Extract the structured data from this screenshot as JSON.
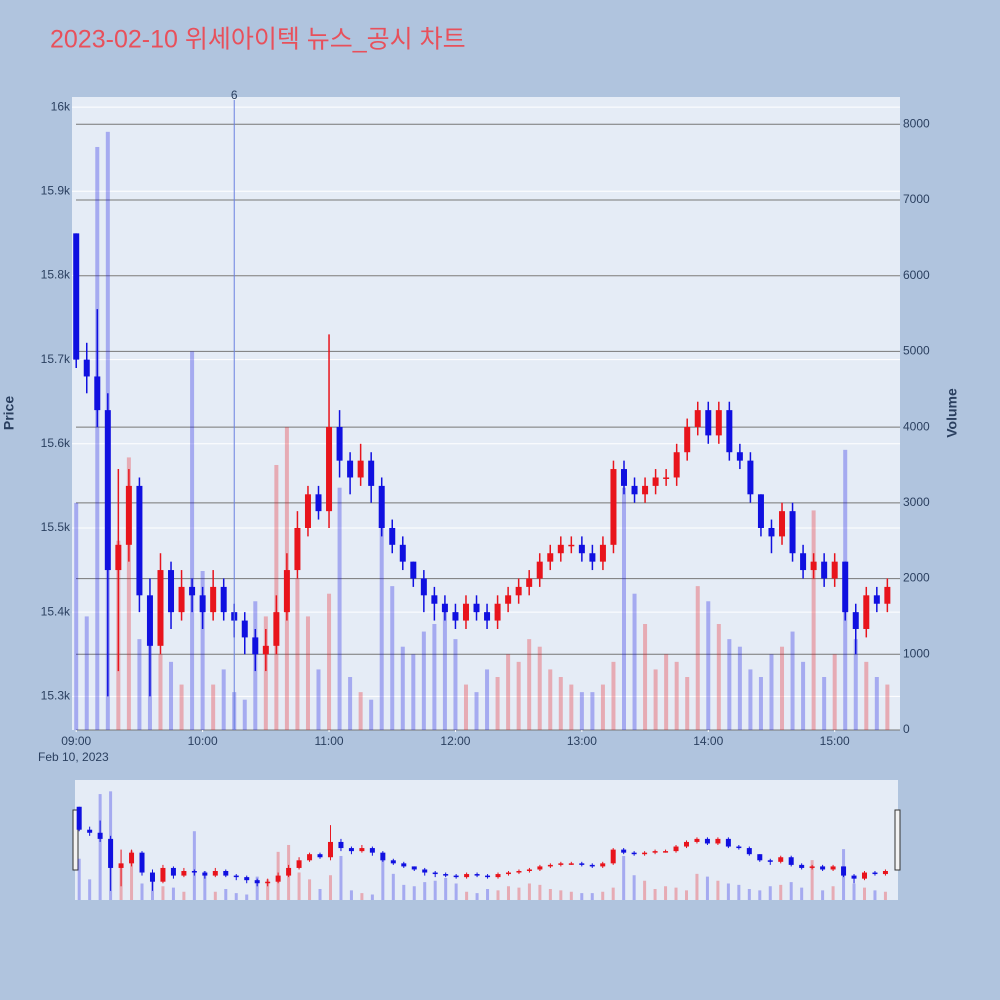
{
  "chart_data": {
    "type": "candlestick",
    "title": "2023-02-10 위세아이텍 뉴스_공시 차트",
    "y_label": "Price",
    "y2_label": "Volume",
    "x_date_label": "Feb 10, 2023",
    "increasing_color": "#e8141c",
    "decreasing_color": "#1010e0",
    "x": [
      "09:00",
      "09:05",
      "09:10",
      "09:15",
      "09:20",
      "09:25",
      "09:30",
      "09:35",
      "09:40",
      "09:45",
      "09:50",
      "09:55",
      "10:00",
      "10:05",
      "10:10",
      "10:15",
      "10:20",
      "10:25",
      "10:30",
      "10:35",
      "10:40",
      "10:45",
      "10:50",
      "10:55",
      "11:00",
      "11:05",
      "11:10",
      "11:15",
      "11:20",
      "11:25",
      "11:30",
      "11:35",
      "11:40",
      "11:45",
      "11:50",
      "11:55",
      "12:00",
      "12:05",
      "12:10",
      "12:15",
      "12:20",
      "12:25",
      "12:30",
      "12:35",
      "12:40",
      "12:45",
      "12:50",
      "12:55",
      "13:00",
      "13:05",
      "13:10",
      "13:15",
      "13:20",
      "13:25",
      "13:30",
      "13:35",
      "13:40",
      "13:45",
      "13:50",
      "13:55",
      "14:00",
      "14:05",
      "14:10",
      "14:15",
      "14:20",
      "14:25",
      "14:30",
      "14:35",
      "14:40",
      "14:45",
      "14:50",
      "14:55",
      "15:00",
      "15:05",
      "15:10",
      "15:15",
      "15:20",
      "15:25"
    ],
    "open": [
      15850,
      15700,
      15680,
      15640,
      15450,
      15480,
      15550,
      15420,
      15360,
      15450,
      15400,
      15430,
      15420,
      15400,
      15430,
      15400,
      15390,
      15370,
      15350,
      15360,
      15400,
      15450,
      15500,
      15540,
      15520,
      15620,
      15580,
      15560,
      15580,
      15550,
      15500,
      15480,
      15460,
      15440,
      15420,
      15410,
      15400,
      15390,
      15410,
      15400,
      15390,
      15410,
      15420,
      15430,
      15440,
      15460,
      15470,
      15480,
      15480,
      15470,
      15460,
      15480,
      15570,
      15550,
      15540,
      15550,
      15560,
      15560,
      15590,
      15620,
      15640,
      15610,
      15640,
      15590,
      15580,
      15540,
      15500,
      15490,
      15520,
      15470,
      15450,
      15460,
      15440,
      15460,
      15400,
      15380,
      15420,
      15410
    ],
    "high": [
      15850,
      15720,
      15760,
      15660,
      15570,
      15570,
      15560,
      15440,
      15470,
      15460,
      15450,
      15440,
      15430,
      15450,
      15440,
      15410,
      15400,
      15380,
      15380,
      15420,
      15470,
      15520,
      15550,
      15550,
      15730,
      15640,
      15590,
      15600,
      15590,
      15560,
      15510,
      15490,
      15460,
      15450,
      15430,
      15420,
      15410,
      15420,
      15420,
      15410,
      15420,
      15430,
      15440,
      15450,
      15470,
      15480,
      15490,
      15490,
      15490,
      15480,
      15490,
      15580,
      15580,
      15560,
      15560,
      15570,
      15570,
      15600,
      15630,
      15650,
      15650,
      15650,
      15650,
      15600,
      15590,
      15540,
      15510,
      15530,
      15530,
      15480,
      15470,
      15470,
      15470,
      15460,
      15410,
      15430,
      15430,
      15440
    ],
    "low": [
      15690,
      15660,
      15620,
      15300,
      15330,
      15460,
      15400,
      15300,
      15350,
      15380,
      15390,
      15400,
      15380,
      15390,
      15390,
      15370,
      15350,
      15330,
      15330,
      15350,
      15390,
      15440,
      15490,
      15510,
      15500,
      15560,
      15540,
      15550,
      15530,
      15490,
      15470,
      15450,
      15430,
      15400,
      15390,
      15390,
      15380,
      15380,
      15390,
      15380,
      15380,
      15400,
      15410,
      15420,
      15430,
      15450,
      15460,
      15470,
      15460,
      15450,
      15450,
      15470,
      15540,
      15530,
      15530,
      15540,
      15550,
      15550,
      15580,
      15610,
      15600,
      15600,
      15580,
      15570,
      15530,
      15490,
      15470,
      15480,
      15460,
      15440,
      15440,
      15430,
      15430,
      15390,
      15350,
      15370,
      15400,
      15400
    ],
    "close": [
      15700,
      15680,
      15640,
      15450,
      15480,
      15550,
      15420,
      15360,
      15450,
      15400,
      15430,
      15420,
      15400,
      15430,
      15400,
      15390,
      15370,
      15350,
      15360,
      15400,
      15450,
      15500,
      15540,
      15520,
      15620,
      15580,
      15560,
      15580,
      15550,
      15500,
      15480,
      15460,
      15440,
      15420,
      15410,
      15400,
      15390,
      15410,
      15400,
      15390,
      15410,
      15420,
      15430,
      15440,
      15460,
      15470,
      15480,
      15480,
      15470,
      15460,
      15480,
      15570,
      15550,
      15540,
      15550,
      15560,
      15560,
      15590,
      15620,
      15640,
      15610,
      15640,
      15590,
      15580,
      15540,
      15500,
      15490,
      15520,
      15470,
      15450,
      15460,
      15440,
      15460,
      15400,
      15380,
      15420,
      15410,
      15430
    ],
    "volume": [
      3000,
      1500,
      7700,
      7900,
      2500,
      3600,
      1200,
      1500,
      1000,
      900,
      600,
      5000,
      2100,
      600,
      800,
      500,
      400,
      1700,
      1500,
      3500,
      4000,
      2000,
      1500,
      800,
      1800,
      3200,
      700,
      500,
      400,
      3000,
      1900,
      1100,
      1000,
      1300,
      1400,
      1600,
      1200,
      600,
      500,
      800,
      700,
      1000,
      900,
      1200,
      1100,
      800,
      700,
      600,
      500,
      500,
      600,
      900,
      3200,
      1800,
      1400,
      800,
      1000,
      900,
      700,
      1900,
      1700,
      1400,
      1200,
      1100,
      800,
      700,
      1000,
      1100,
      1300,
      900,
      2900,
      700,
      1000,
      3700,
      1200,
      900,
      700,
      600
    ],
    "xlim": [
      "08:58",
      "15:31"
    ],
    "xticks": [
      "09:00",
      "10:00",
      "11:00",
      "12:00",
      "13:00",
      "14:00",
      "15:00"
    ],
    "ylim": [
      15260,
      16012
    ],
    "yticks": [
      {
        "value": 15300,
        "label": "15.3k"
      },
      {
        "value": 15400,
        "label": "15.4k"
      },
      {
        "value": 15500,
        "label": "15.5k"
      },
      {
        "value": 15600,
        "label": "15.6k"
      },
      {
        "value": 15700,
        "label": "15.7k"
      },
      {
        "value": 15800,
        "label": "15.8k"
      },
      {
        "value": 15900,
        "label": "15.9k"
      },
      {
        "value": 16000,
        "label": "16k"
      }
    ],
    "y2lim": [
      0,
      8360
    ],
    "y2ticks": [
      0,
      1000,
      2000,
      3000,
      4000,
      5000,
      6000,
      7000,
      8000
    ],
    "annotations": [
      {
        "x": "10:15",
        "text": "6"
      }
    ]
  }
}
